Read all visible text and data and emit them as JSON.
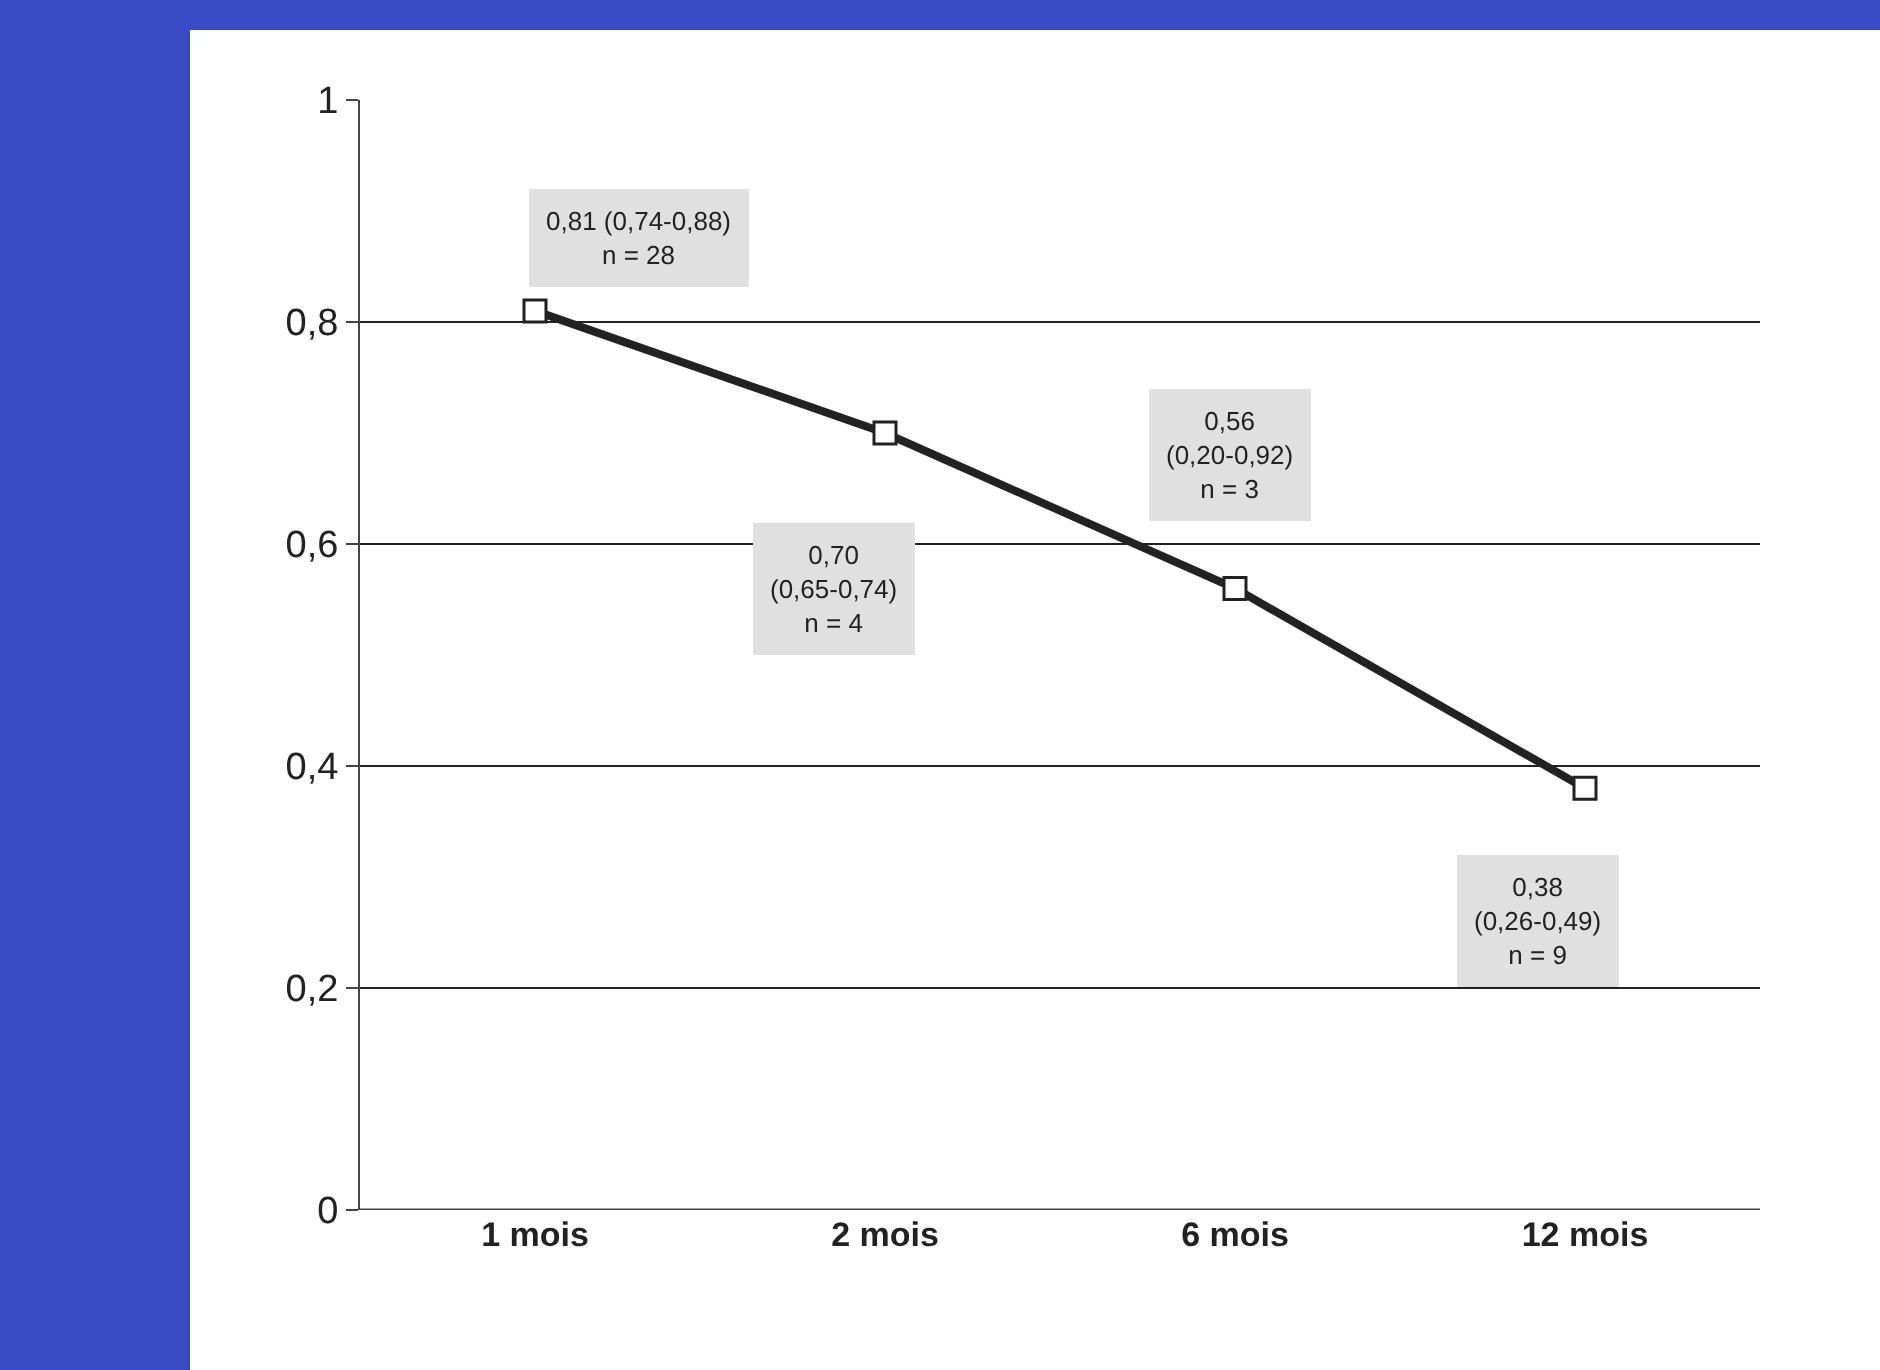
{
  "chart_data": {
    "type": "line",
    "categories": [
      "1 mois",
      "2 mois",
      "6 mois",
      "12 mois"
    ],
    "series": [
      {
        "color": "#222222",
        "values": [
          0.81,
          0.7,
          0.56,
          0.38
        ]
      }
    ],
    "ylim": [
      0,
      1
    ],
    "yticks": [
      0,
      {
        "value": 0.2,
        "label": "0,2"
      },
      {
        "value": 0.4,
        "label": "0,4"
      },
      {
        "value": 0.6,
        "label": "0,6"
      },
      {
        "value": 0.8,
        "label": "0,8"
      },
      1
    ],
    "grid": "y",
    "marker": "square",
    "line_style": "solid",
    "legend": false,
    "annotations": [
      "0,81 (0,74-0,88)\nn = 28",
      "0,70\n(0,65-0,74)\nn = 4",
      "0,56\n(0,20-0,92)\nn = 3",
      "0,38\n(0,26-0,49)\nn = 9"
    ]
  }
}
